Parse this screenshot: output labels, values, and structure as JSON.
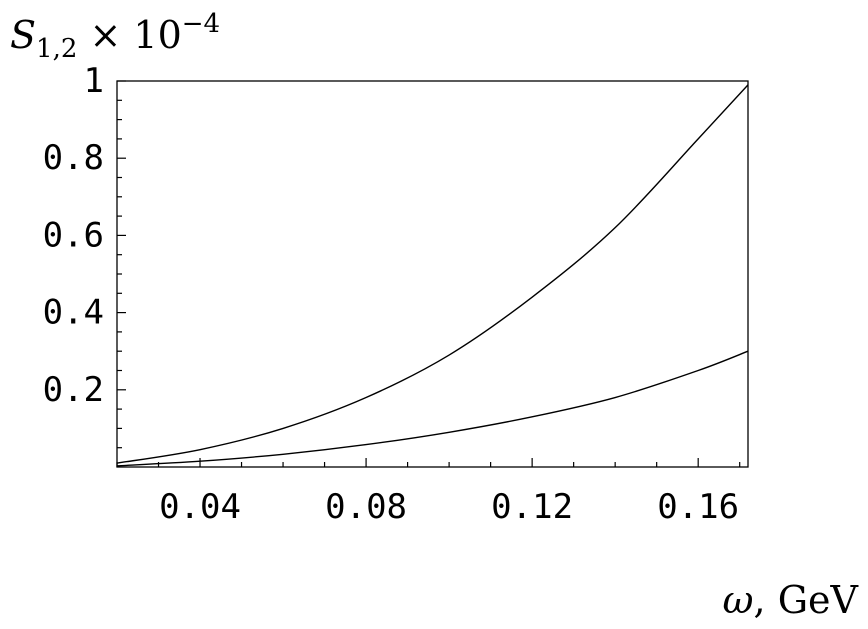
{
  "chart_data": {
    "type": "line",
    "ylabel": {
      "base": "S",
      "sub": "1,2",
      "times": " × 10",
      "exp": "−4"
    },
    "xlabel": {
      "symbol": "ω",
      "unit": ", GeV"
    },
    "xlim": [
      0.02,
      0.172
    ],
    "ylim": [
      0,
      1.0
    ],
    "xticks": [
      0.04,
      0.08,
      0.12,
      0.16
    ],
    "xtick_labels": [
      "0.04",
      "0.08",
      "0.12",
      "0.16"
    ],
    "yticks": [
      0.2,
      0.4,
      0.6,
      0.8,
      1.0
    ],
    "ytick_labels": [
      "0.2",
      "0.4",
      "0.6",
      "0.8",
      "1"
    ],
    "grid": false,
    "series": [
      {
        "x": [
          0.02,
          0.04,
          0.06,
          0.08,
          0.1,
          0.12,
          0.14,
          0.16,
          0.172
        ],
        "y": [
          0.01,
          0.045,
          0.1,
          0.18,
          0.29,
          0.44,
          0.62,
          0.85,
          0.99
        ]
      },
      {
        "x": [
          0.02,
          0.04,
          0.06,
          0.08,
          0.1,
          0.12,
          0.14,
          0.16,
          0.172
        ],
        "y": [
          0.003,
          0.015,
          0.033,
          0.058,
          0.09,
          0.13,
          0.18,
          0.25,
          0.3
        ]
      }
    ]
  }
}
